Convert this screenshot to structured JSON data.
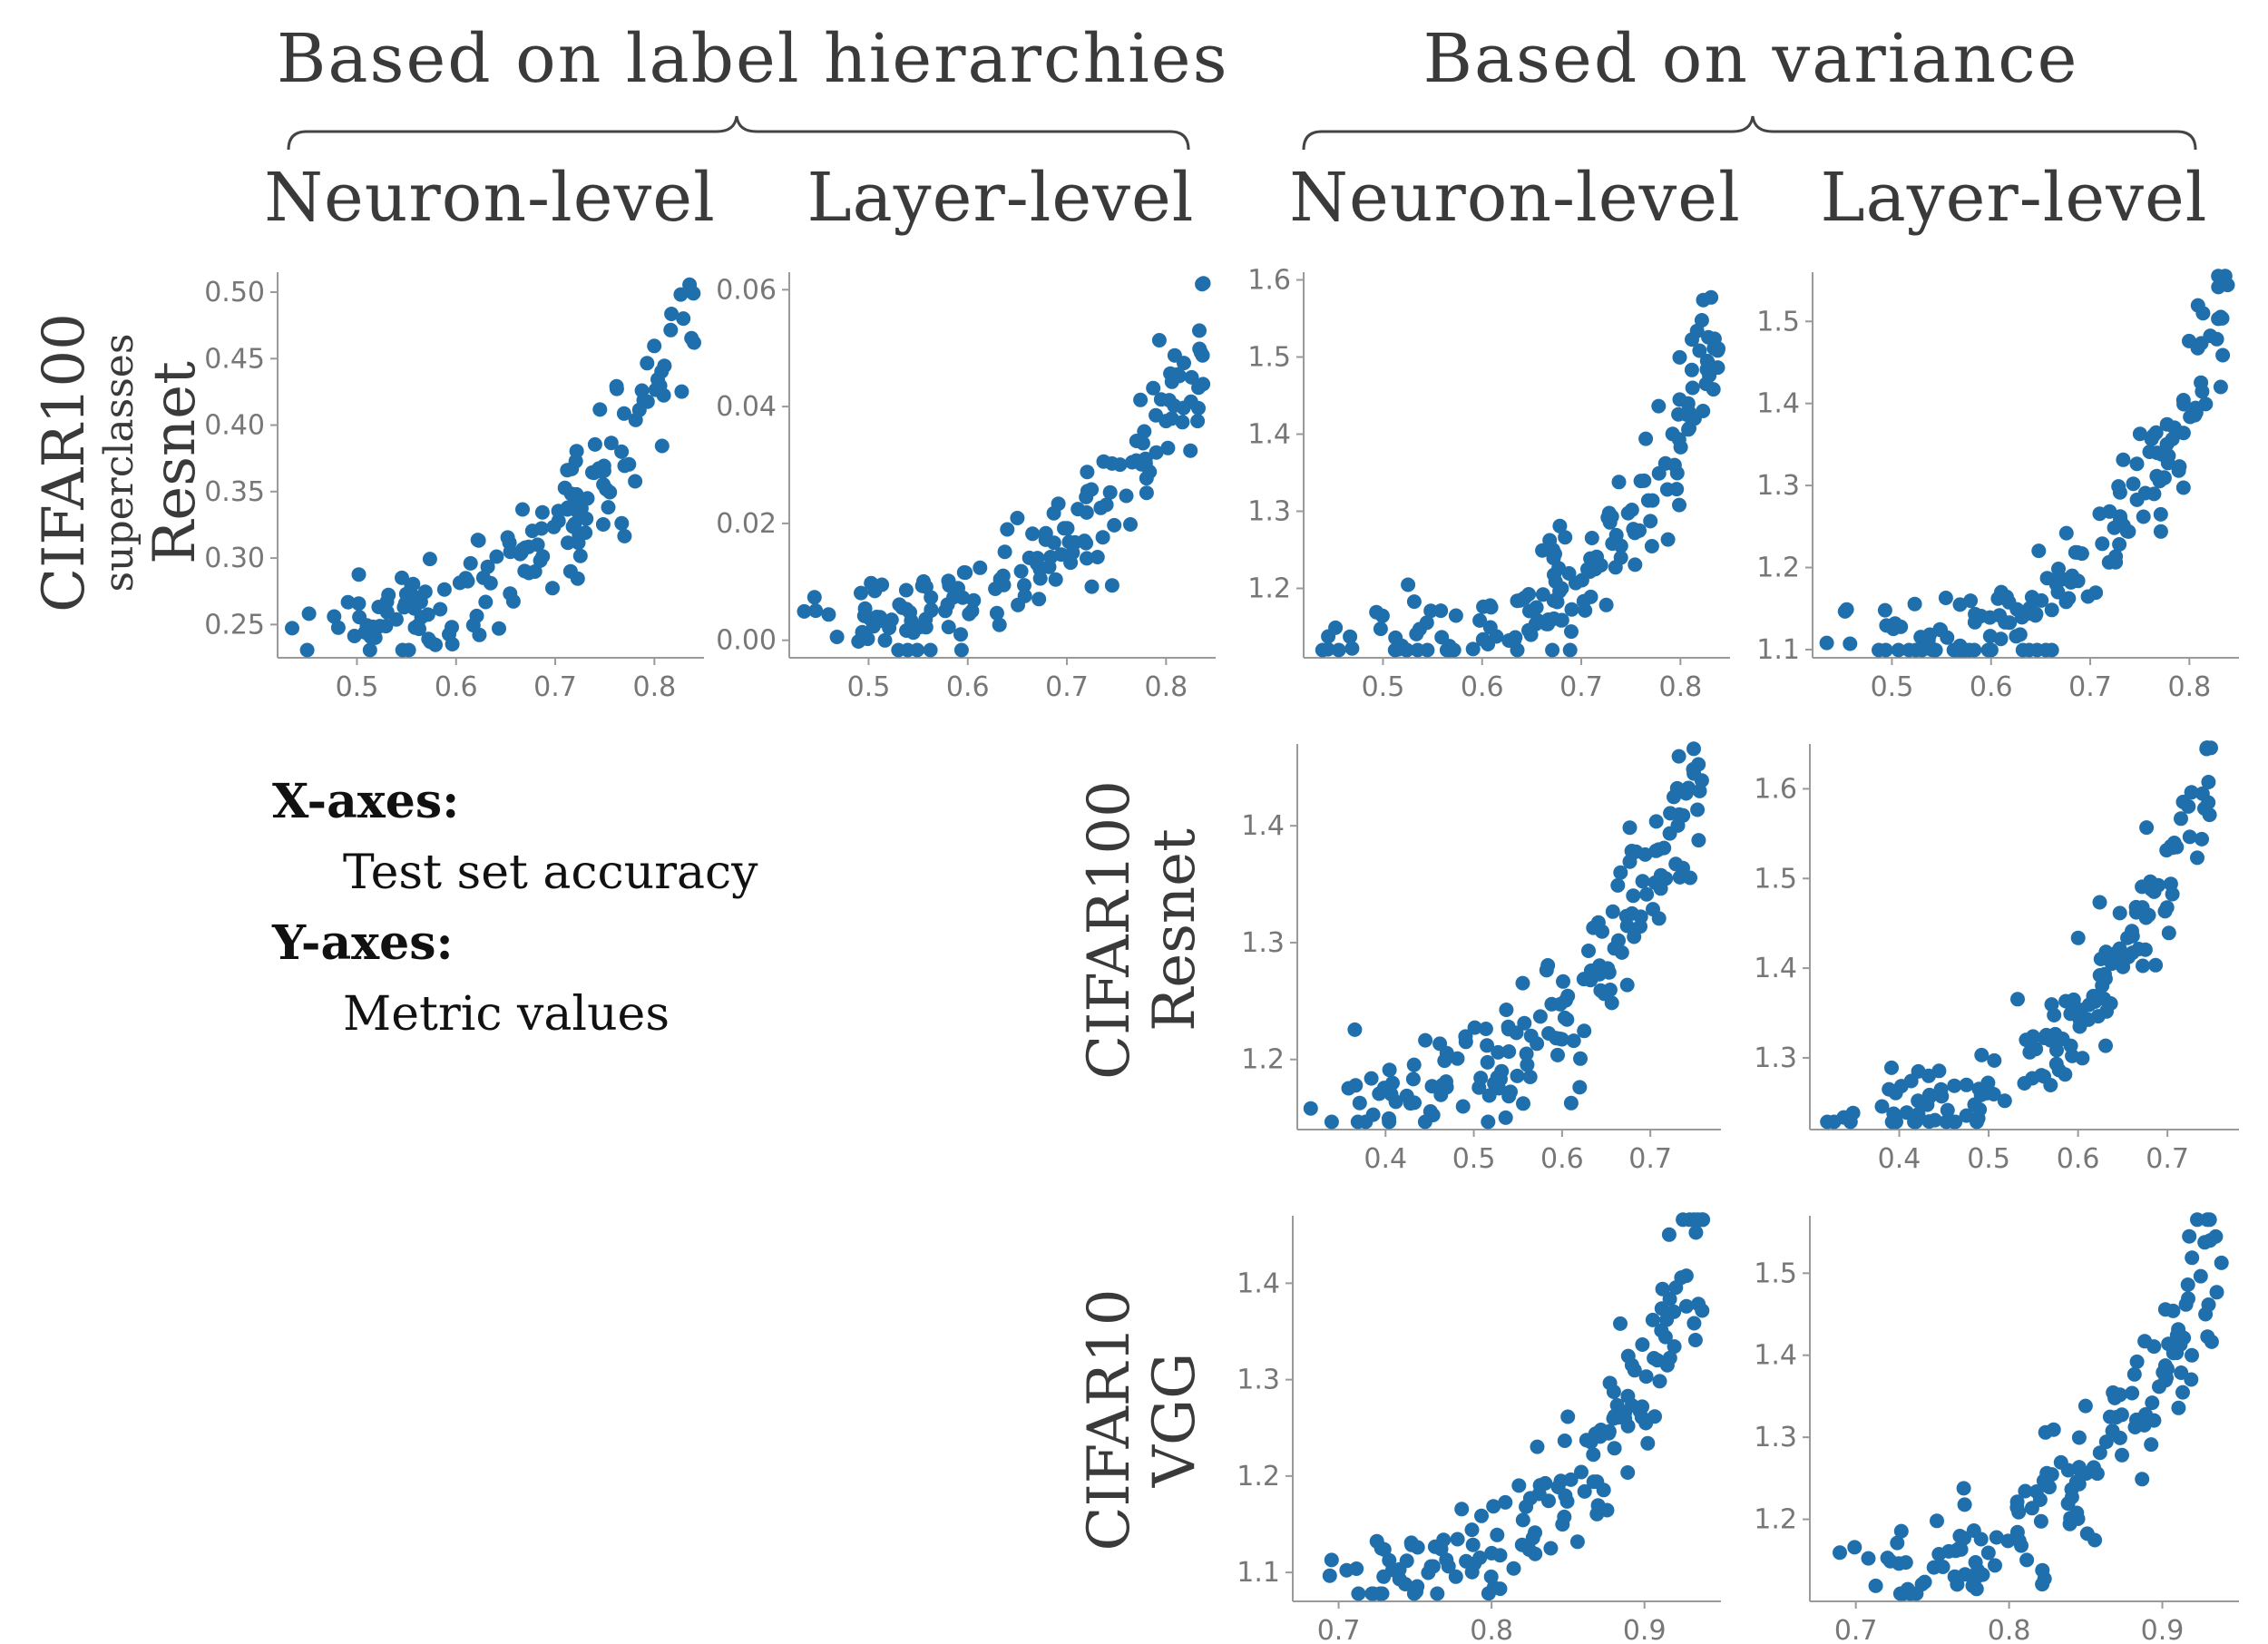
{
  "groups": {
    "left_title": "Based on label hierarchies",
    "right_title": "Based on variance"
  },
  "columns": [
    "Neuron-level",
    "Layer-level",
    "Neuron-level",
    "Layer-level"
  ],
  "rows": [
    {
      "dataset": "CIFAR100",
      "sub": "superclasses",
      "model": "Resnet"
    },
    {
      "dataset": "CIFAR100",
      "model": "Resnet"
    },
    {
      "dataset": "CIFAR10",
      "model": "VGG"
    }
  ],
  "legend": {
    "x_label": "X-axes:",
    "x_value": "Test set accuracy",
    "y_label": "Y-axes:",
    "y_value": "Metric values"
  },
  "colors": {
    "point": "#1f6fad",
    "axis": "#9a9a9a",
    "tick_text": "#777777"
  },
  "chart_data": [
    {
      "type": "scatter",
      "id": "r1c1",
      "xlim": [
        0.42,
        0.85
      ],
      "ylim": [
        0.225,
        0.515
      ],
      "xticks": [
        0.5,
        0.6,
        0.7,
        0.8
      ],
      "yticks": [
        0.25,
        0.3,
        0.35,
        0.4,
        0.45,
        0.5
      ],
      "ytick_labels": [
        "0.25",
        "0.30",
        "0.35",
        "0.40",
        "0.45",
        "0.50"
      ],
      "xtick_labels": [
        "0.5",
        "0.6",
        "0.7",
        "0.8"
      ],
      "base": {
        "a": 0.25,
        "b": 0.24,
        "c": 3.0,
        "x0": 0.43
      },
      "scatter_noise": 0.018,
      "x_range": [
        0.43,
        0.84
      ],
      "n": 160
    },
    {
      "type": "scatter",
      "id": "r1c2",
      "xlim": [
        0.42,
        0.85
      ],
      "ylim": [
        -0.003,
        0.063
      ],
      "xticks": [
        0.5,
        0.6,
        0.7,
        0.8
      ],
      "yticks": [
        0.0,
        0.02,
        0.04,
        0.06
      ],
      "ytick_labels": [
        "0.00",
        "0.02",
        "0.04",
        "0.06"
      ],
      "xtick_labels": [
        "0.5",
        "0.6",
        "0.7",
        "0.8"
      ],
      "base": {
        "a": 0.003,
        "b": 0.05,
        "c": 3.2,
        "x0": 0.43
      },
      "scatter_noise": 0.004,
      "x_range": [
        0.43,
        0.84
      ],
      "n": 160
    },
    {
      "type": "scatter",
      "id": "r1c3",
      "xlim": [
        0.42,
        0.85
      ],
      "ylim": [
        1.11,
        1.61
      ],
      "xticks": [
        0.5,
        0.6,
        0.7,
        0.8
      ],
      "yticks": [
        1.2,
        1.3,
        1.4,
        1.5,
        1.6
      ],
      "ytick_labels": [
        "1.2",
        "1.3",
        "1.4",
        "1.5",
        "1.6"
      ],
      "xtick_labels": [
        "0.5",
        "0.6",
        "0.7",
        "0.8"
      ],
      "base": {
        "a": 1.13,
        "b": 0.42,
        "c": 4.0,
        "x0": 0.43
      },
      "scatter_noise": 0.035,
      "x_range": [
        0.43,
        0.84
      ],
      "n": 160
    },
    {
      "type": "scatter",
      "id": "r1c4",
      "xlim": [
        0.42,
        0.85
      ],
      "ylim": [
        1.09,
        1.56
      ],
      "xticks": [
        0.5,
        0.6,
        0.7,
        0.8
      ],
      "yticks": [
        1.1,
        1.2,
        1.3,
        1.4,
        1.5
      ],
      "ytick_labels": [
        "1.1",
        "1.2",
        "1.3",
        "1.4",
        "1.5"
      ],
      "xtick_labels": [
        "0.5",
        "0.6",
        "0.7",
        "0.8"
      ],
      "base": {
        "a": 1.11,
        "b": 0.42,
        "c": 3.6,
        "x0": 0.43
      },
      "scatter_noise": 0.03,
      "x_range": [
        0.43,
        0.84
      ],
      "n": 160
    },
    {
      "type": "scatter",
      "id": "r2c3",
      "xlim": [
        0.3,
        0.78
      ],
      "ylim": [
        1.14,
        1.47
      ],
      "xticks": [
        0.4,
        0.5,
        0.6,
        0.7
      ],
      "yticks": [
        1.2,
        1.3,
        1.4
      ],
      "ytick_labels": [
        "1.2",
        "1.3",
        "1.4"
      ],
      "xtick_labels": [
        "0.4",
        "0.5",
        "0.6",
        "0.7"
      ],
      "base": {
        "a": 1.17,
        "b": 0.28,
        "c": 3.2,
        "x0": 0.31
      },
      "scatter_noise": 0.025,
      "x_range": [
        0.31,
        0.76
      ],
      "n": 160
    },
    {
      "type": "scatter",
      "id": "r2c4",
      "xlim": [
        0.3,
        0.78
      ],
      "ylim": [
        1.22,
        1.65
      ],
      "xticks": [
        0.4,
        0.5,
        0.6,
        0.7
      ],
      "yticks": [
        1.3,
        1.4,
        1.5,
        1.6
      ],
      "ytick_labels": [
        "1.3",
        "1.4",
        "1.5",
        "1.6"
      ],
      "xtick_labels": [
        "0.4",
        "0.5",
        "0.6",
        "0.7"
      ],
      "base": {
        "a": 1.235,
        "b": 0.4,
        "c": 3.0,
        "x0": 0.31
      },
      "scatter_noise": 0.025,
      "x_range": [
        0.31,
        0.75
      ],
      "n": 160
    },
    {
      "type": "scatter",
      "id": "r3c3",
      "xlim": [
        0.67,
        0.95
      ],
      "ylim": [
        1.07,
        1.47
      ],
      "xticks": [
        0.7,
        0.8,
        0.9
      ],
      "yticks": [
        1.1,
        1.2,
        1.3,
        1.4
      ],
      "ytick_labels": [
        "1.1",
        "1.2",
        "1.3",
        "1.4"
      ],
      "xtick_labels": [
        "0.7",
        "0.8",
        "0.9"
      ],
      "base": {
        "a": 1.09,
        "b": 0.36,
        "c": 3.0,
        "x0": 0.68
      },
      "scatter_noise": 0.03,
      "x_range": [
        0.68,
        0.94
      ],
      "n": 150
    },
    {
      "type": "scatter",
      "id": "r3c4",
      "xlim": [
        0.67,
        0.95
      ],
      "ylim": [
        1.1,
        1.57
      ],
      "xticks": [
        0.7,
        0.8,
        0.9
      ],
      "yticks": [
        1.2,
        1.3,
        1.4,
        1.5
      ],
      "ytick_labels": [
        "1.2",
        "1.3",
        "1.4",
        "1.5"
      ],
      "xtick_labels": [
        "0.7",
        "0.8",
        "0.9"
      ],
      "base": {
        "a": 1.13,
        "b": 0.4,
        "c": 2.8,
        "x0": 0.68
      },
      "scatter_noise": 0.035,
      "x_range": [
        0.68,
        0.94
      ],
      "n": 150
    }
  ]
}
